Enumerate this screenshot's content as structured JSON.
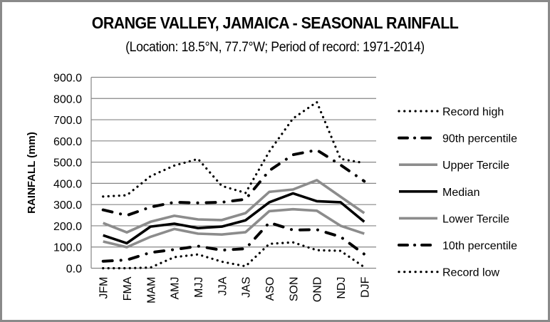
{
  "chart_data": {
    "type": "line",
    "title": "ORANGE VALLEY, JAMAICA - SEASONAL RAINFALL",
    "subtitle": "(Location: 18.5°N, 77.7°W; Period of record: 1971-2014)",
    "xlabel": "",
    "ylabel": "RAINFALL (mm)",
    "ylim": [
      0,
      900
    ],
    "yticks": [
      0,
      100,
      200,
      300,
      400,
      500,
      600,
      700,
      800,
      900
    ],
    "ytick_labels": [
      "0.0",
      "100.0",
      "200.0",
      "300.0",
      "400.0",
      "500.0",
      "600.0",
      "700.0",
      "800.0",
      "900.0"
    ],
    "grid": true,
    "legend_position": "right",
    "categories": [
      "JFM",
      "FMA",
      "MAM",
      "AMJ",
      "MJJ",
      "JJA",
      "JAS",
      "ASO",
      "SON",
      "OND",
      "NDJ",
      "DJF"
    ],
    "series": [
      {
        "name": "Record high",
        "style": "dotted",
        "color": "#000000",
        "values": [
          338,
          344,
          434,
          484,
          515,
          388,
          355,
          550,
          706,
          783,
          515,
          496
        ]
      },
      {
        "name": "90th percentile",
        "style": "dash-dot",
        "color": "#000000",
        "values": [
          275,
          249,
          288,
          311,
          308,
          311,
          325,
          460,
          535,
          557,
          487,
          410
        ]
      },
      {
        "name": "Upper Tercile",
        "style": "solid",
        "color": "#8c8c8c",
        "values": [
          213,
          169,
          219,
          247,
          230,
          227,
          260,
          360,
          371,
          415,
          337,
          260
        ]
      },
      {
        "name": "Median",
        "style": "solid",
        "color": "#000000",
        "values": [
          155,
          118,
          196,
          210,
          189,
          196,
          226,
          311,
          353,
          316,
          311,
          219
        ]
      },
      {
        "name": "Lower Tercile",
        "style": "solid",
        "color": "#8c8c8c",
        "values": [
          126,
          99,
          148,
          185,
          163,
          159,
          170,
          269,
          278,
          271,
          200,
          163
        ]
      },
      {
        "name": "10th percentile",
        "style": "dash-dot",
        "color": "#000000",
        "values": [
          33,
          39,
          74,
          88,
          104,
          85,
          92,
          215,
          180,
          182,
          148,
          66
        ]
      },
      {
        "name": "Record low",
        "style": "dotted",
        "color": "#000000",
        "values": [
          0,
          0,
          3,
          52,
          65,
          31,
          9,
          115,
          122,
          85,
          82,
          5
        ]
      }
    ]
  }
}
